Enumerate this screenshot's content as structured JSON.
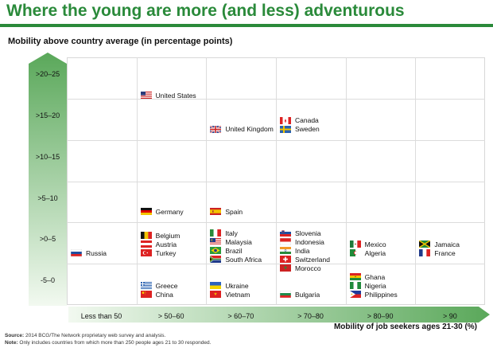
{
  "title": "Where the young are more (and less) adventurous",
  "chart_data": {
    "type": "table",
    "title": "Where the young are more (and less) adventurous",
    "ylabel": "Mobility above country average (in percentage points)",
    "xlabel": "Mobility of job seekers ages 21-30 (%)",
    "y_categories": [
      ">20–25",
      ">15–20",
      ">10–15",
      ">5–10",
      ">0–5",
      "-5–0"
    ],
    "x_categories": [
      "Less than 50",
      "> 50–60",
      "> 60–70",
      "> 70–80",
      "> 80–90",
      "> 90"
    ],
    "points": [
      {
        "country": "United States",
        "flag": "us-flag",
        "col": 1,
        "row": 0
      },
      {
        "country": "Canada",
        "flag": "canada-flag",
        "col": 3,
        "row": 1
      },
      {
        "country": "United Kingdom",
        "flag": "uk-flag",
        "col": 2,
        "row": 1
      },
      {
        "country": "Sweden",
        "flag": "sweden-flag",
        "col": 3,
        "row": 1
      },
      {
        "country": "Germany",
        "flag": "germany-flag",
        "col": 1,
        "row": 3
      },
      {
        "country": "Spain",
        "flag": "spain-flag",
        "col": 2,
        "row": 3
      },
      {
        "country": "Slovenia",
        "flag": "slovenia-flag",
        "col": 3,
        "row": 4
      },
      {
        "country": "Indonesia",
        "flag": "indonesia-flag",
        "col": 3,
        "row": 4
      },
      {
        "country": "India",
        "flag": "india-flag",
        "col": 3,
        "row": 4
      },
      {
        "country": "Switzerland",
        "flag": "switzerland-flag",
        "col": 3,
        "row": 4
      },
      {
        "country": "Morocco",
        "flag": "morocco-flag",
        "col": 3,
        "row": 4
      },
      {
        "country": "Italy",
        "flag": "italy-flag",
        "col": 2,
        "row": 4
      },
      {
        "country": "Malaysia",
        "flag": "malaysia-flag",
        "col": 2,
        "row": 4
      },
      {
        "country": "Brazil",
        "flag": "brazil-flag",
        "col": 2,
        "row": 4
      },
      {
        "country": "South Africa",
        "flag": "south-africa-flag",
        "col": 2,
        "row": 4
      },
      {
        "country": "Belgium",
        "flag": "belgium-flag",
        "col": 1,
        "row": 4
      },
      {
        "country": "Austria",
        "flag": "austria-flag",
        "col": 1,
        "row": 4
      },
      {
        "country": "Turkey",
        "flag": "turkey-flag",
        "col": 1,
        "row": 4
      },
      {
        "country": "Russia",
        "flag": "russia-flag",
        "col": 0,
        "row": 4
      },
      {
        "country": "Mexico",
        "flag": "mexico-flag",
        "col": 4,
        "row": 4
      },
      {
        "country": "Algeria",
        "flag": "algeria-flag",
        "col": 4,
        "row": 4
      },
      {
        "country": "Jamaica",
        "flag": "jamaica-flag",
        "col": 5,
        "row": 4
      },
      {
        "country": "France",
        "flag": "france-flag",
        "col": 5,
        "row": 4
      },
      {
        "country": "Greece",
        "flag": "greece-flag",
        "col": 1,
        "row": 5
      },
      {
        "country": "China",
        "flag": "china-flag",
        "col": 1,
        "row": 5
      },
      {
        "country": "Ukraine",
        "flag": "ukraine-flag",
        "col": 2,
        "row": 5
      },
      {
        "country": "Vietnam",
        "flag": "vietnam-flag",
        "col": 2,
        "row": 5
      },
      {
        "country": "Bulgaria",
        "flag": "bulgaria-flag",
        "col": 3,
        "row": 5
      },
      {
        "country": "Ghana",
        "flag": "ghana-flag",
        "col": 4,
        "row": 5
      },
      {
        "country": "Nigeria",
        "flag": "nigeria-flag",
        "col": 4,
        "row": 5
      },
      {
        "country": "Philippines",
        "flag": "philippines-flag",
        "col": 4,
        "row": 5
      }
    ]
  },
  "footnotes": {
    "source_label": "Source:",
    "source_text": "2014 BCG/The Network proprietary web survey and analysis.",
    "note_label": "Note:",
    "note_text": "Only includes countries from which more than 250 people ages 21 to 30 responded."
  },
  "colors": {
    "brand_green": "#2a8a3a",
    "arrow_light": "#e6f3e4",
    "arrow_dark": "#5aa85a",
    "grid": "#dcdcdc"
  }
}
